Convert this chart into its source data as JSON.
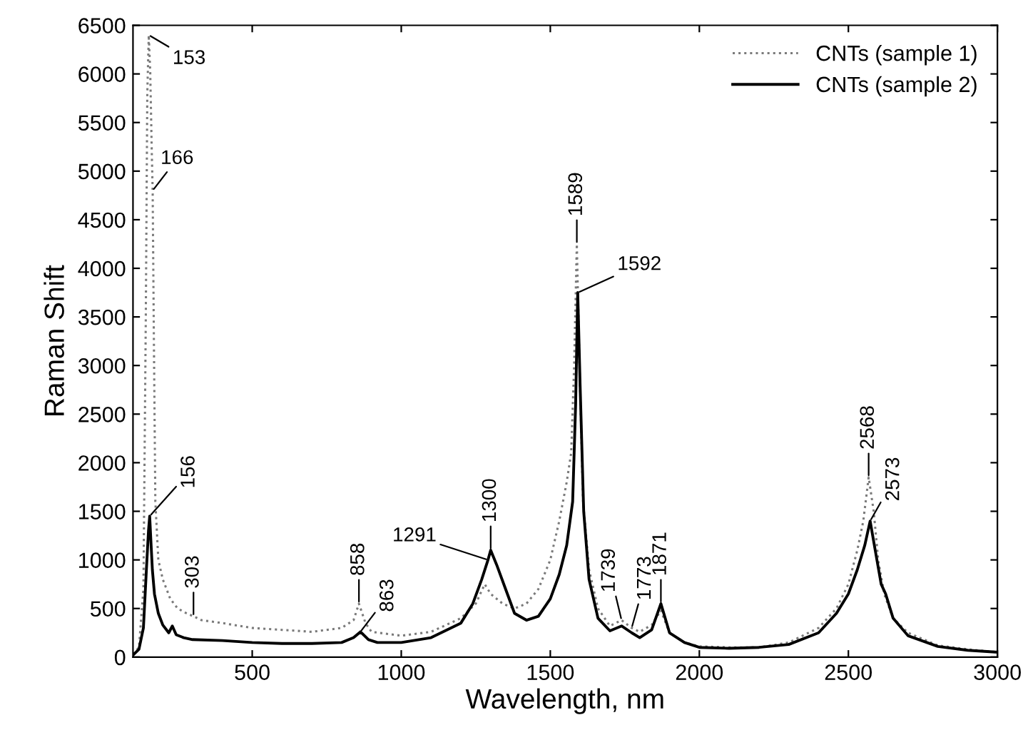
{
  "chart_data": {
    "type": "line",
    "xlabel": "Wavelength, nm",
    "ylabel": "Raman Shift",
    "xlim": [
      100,
      3000
    ],
    "xticks": [
      500,
      1000,
      1500,
      2000,
      2500,
      3000
    ],
    "ylim": [
      0,
      6500
    ],
    "yticks": [
      0,
      500,
      1000,
      1500,
      2000,
      2500,
      3000,
      3500,
      4000,
      4500,
      5000,
      5500,
      6000,
      6500
    ],
    "grid": false,
    "legend": "top right",
    "marker": "none",
    "series": [
      {
        "name": "CNTs (sample 1)",
        "color": "#7a7a7a",
        "line_style": "dotted",
        "x": [
          100,
          120,
          135,
          143,
          148,
          153,
          158,
          163,
          166,
          170,
          175,
          185,
          200,
          225,
          250,
          280,
          303,
          330,
          400,
          500,
          600,
          700,
          800,
          840,
          858,
          880,
          900,
          1000,
          1100,
          1200,
          1250,
          1280,
          1300,
          1340,
          1380,
          1420,
          1460,
          1500,
          1530,
          1555,
          1570,
          1580,
          1589,
          1598,
          1610,
          1630,
          1660,
          1700,
          1739,
          1773,
          1800,
          1840,
          1871,
          1900,
          1950,
          2000,
          2100,
          2200,
          2300,
          2400,
          2460,
          2500,
          2530,
          2550,
          2568,
          2585,
          2600,
          2620,
          2650,
          2700,
          2800,
          2900,
          3000
        ],
        "values": [
          30,
          100,
          700,
          3500,
          5800,
          6400,
          6000,
          5200,
          4800,
          3300,
          1600,
          1000,
          800,
          600,
          500,
          450,
          420,
          380,
          350,
          300,
          280,
          260,
          300,
          380,
          550,
          350,
          260,
          220,
          260,
          400,
          550,
          750,
          650,
          550,
          500,
          550,
          700,
          1000,
          1400,
          1800,
          2100,
          3000,
          4250,
          3000,
          1600,
          900,
          500,
          320,
          380,
          300,
          260,
          330,
          480,
          250,
          150,
          110,
          100,
          100,
          150,
          300,
          500,
          750,
          1100,
          1400,
          1850,
          1500,
          1000,
          650,
          400,
          250,
          120,
          80,
          50
        ]
      },
      {
        "name": "CNTs (sample 2)",
        "color": "#000000",
        "line_style": "solid",
        "x": [
          100,
          120,
          135,
          145,
          152,
          156,
          160,
          165,
          172,
          185,
          200,
          220,
          232,
          245,
          270,
          300,
          400,
          500,
          600,
          700,
          800,
          840,
          863,
          890,
          920,
          1000,
          1100,
          1200,
          1240,
          1270,
          1291,
          1300,
          1320,
          1350,
          1380,
          1420,
          1460,
          1500,
          1530,
          1555,
          1575,
          1585,
          1592,
          1600,
          1612,
          1630,
          1660,
          1700,
          1739,
          1773,
          1800,
          1840,
          1871,
          1900,
          1950,
          2000,
          2100,
          2200,
          2300,
          2400,
          2460,
          2500,
          2530,
          2555,
          2573,
          2590,
          2610,
          2625,
          2650,
          2700,
          2800,
          2900,
          3000
        ],
        "values": [
          20,
          80,
          300,
          900,
          1300,
          1450,
          1200,
          900,
          650,
          450,
          330,
          250,
          320,
          230,
          200,
          180,
          170,
          150,
          140,
          140,
          150,
          200,
          260,
          180,
          150,
          150,
          200,
          350,
          550,
          800,
          1000,
          1100,
          950,
          700,
          450,
          380,
          420,
          600,
          850,
          1150,
          1600,
          2600,
          3750,
          2800,
          1500,
          800,
          400,
          270,
          320,
          250,
          200,
          280,
          550,
          250,
          150,
          100,
          90,
          100,
          130,
          250,
          450,
          650,
          900,
          1150,
          1400,
          1100,
          750,
          650,
          400,
          220,
          110,
          70,
          50
        ]
      }
    ],
    "annotations": [
      {
        "text": "153",
        "x": 153,
        "y": 6400
      },
      {
        "text": "166",
        "x": 166,
        "y": 4800
      },
      {
        "text": "156",
        "x": 156,
        "y": 1450
      },
      {
        "text": "303",
        "x": 303,
        "y": 420
      },
      {
        "text": "858",
        "x": 858,
        "y": 550
      },
      {
        "text": "863",
        "x": 863,
        "y": 260
      },
      {
        "text": "1291",
        "x": 1291,
        "y": 1000
      },
      {
        "text": "1300",
        "x": 1300,
        "y": 1100
      },
      {
        "text": "1589",
        "x": 1589,
        "y": 4250
      },
      {
        "text": "1592",
        "x": 1592,
        "y": 3750
      },
      {
        "text": "1739",
        "x": 1739,
        "y": 380
      },
      {
        "text": "1773",
        "x": 1773,
        "y": 300
      },
      {
        "text": "1871",
        "x": 1871,
        "y": 550
      },
      {
        "text": "2568",
        "x": 2568,
        "y": 1850
      },
      {
        "text": "2573",
        "x": 2573,
        "y": 1400
      }
    ]
  }
}
